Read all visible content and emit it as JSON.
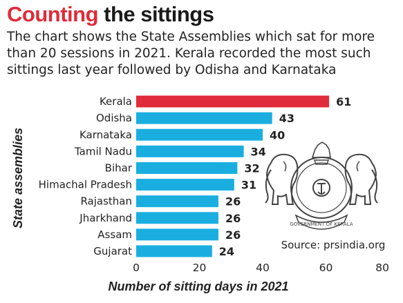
{
  "header": {
    "title_accent": "Counting",
    "title_rest": "the sittings",
    "subtitle": "The chart shows the State Assemblies which sat for more than 20 sessions in 2021. Kerala recorded the most such sittings last year followed by Odisha and Karnataka"
  },
  "source": "Source: prsindia.org",
  "emblem": {
    "label": "GOVERNMENT OF KERALA",
    "icon": "kerala-government-emblem"
  },
  "colors": {
    "highlight": "#e02b3a",
    "bar": "#1aaee0",
    "title_accent": "#e02b3a"
  },
  "chart_data": {
    "type": "bar",
    "orientation": "horizontal",
    "categories": [
      "Kerala",
      "Odisha",
      "Karnataka",
      "Tamil Nadu",
      "Bihar",
      "Himachal Pradesh",
      "Rajasthan",
      "Jharkhand",
      "Assam",
      "Gujarat"
    ],
    "values": [
      61,
      43,
      40,
      34,
      32,
      31,
      26,
      26,
      26,
      24
    ],
    "highlight": "Kerala",
    "xlabel": "Number of sitting days in 2021",
    "ylabel": "State assemblies",
    "xlim": [
      0,
      80
    ],
    "xticks": [
      0,
      20,
      40,
      60,
      80
    ],
    "grid": false,
    "data_labels": true
  }
}
